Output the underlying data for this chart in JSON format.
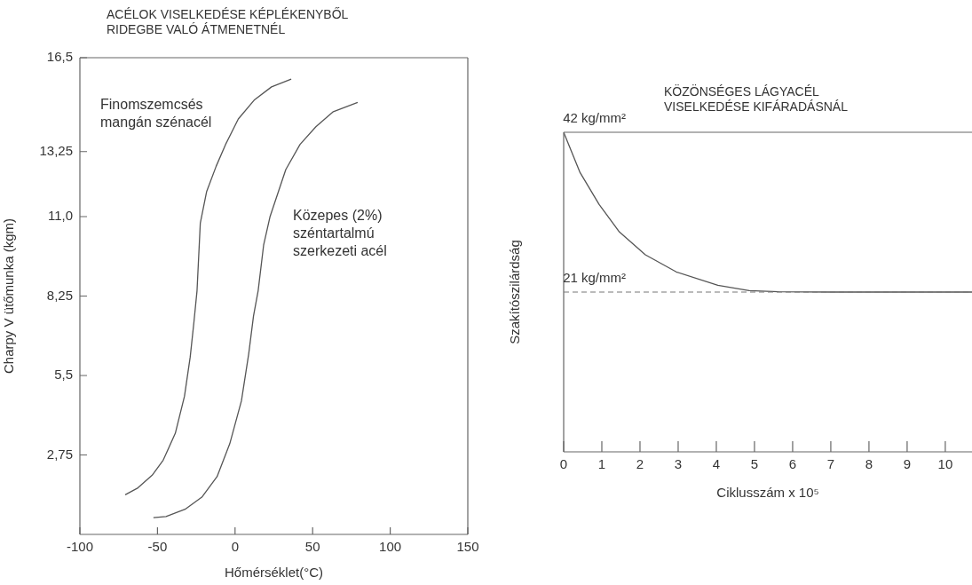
{
  "chart_data": [
    {
      "type": "line",
      "title": "ACÉLOK VISELKEDÉSE KÉPLÉKENYBŐL RIDEGBE VALÓ ÁTMENETNÉL",
      "xlabel": "Hőmérséklet(°C)",
      "ylabel": "Charpy V ütőmunka (kgm)",
      "xlim": [
        -100,
        150
      ],
      "xticks": [
        -100,
        -50,
        0,
        50,
        100,
        150
      ],
      "ylim": [
        0,
        16.5
      ],
      "yticks": [
        {
          "value": 2.75,
          "label": "2,75"
        },
        {
          "value": 5.5,
          "label": "5,5"
        },
        {
          "value": 8.25,
          "label": "8,25"
        },
        {
          "value": 11,
          "label": "11,0"
        },
        {
          "value": 13.25,
          "label": "13,25"
        },
        {
          "value": 16.5,
          "label": "16,5"
        }
      ],
      "grid": false,
      "legend": false,
      "marker": "none",
      "series": [
        {
          "name": "Finomszemcsés mangán szénacél",
          "color": "#555555",
          "x": [
            -70.8,
            -62.6,
            -53.4,
            -46.3,
            -38.5,
            -32.6,
            -28.9,
            -26.5,
            -24.5,
            -22.4,
            -18.3,
            -12.2,
            -6.1,
            2.1,
            12.3,
            23.5,
            36.2
          ],
          "values": [
            1.37,
            1.61,
            2.05,
            2.57,
            3.5,
            4.78,
            6.14,
            7.35,
            8.44,
            10.77,
            11.87,
            12.74,
            13.5,
            14.38,
            15.03,
            15.49,
            15.76
          ]
        },
        {
          "name": "Közepes (2%) széntartalmú szerkezeti acél",
          "color": "#555555",
          "x": [
            -52.6,
            -44.5,
            -32.2,
            -21.4,
            -11.6,
            -3.4,
            4.1,
            8.8,
            11.9,
            14.9,
            18.4,
            22.5,
            32.7,
            41.9,
            52.1,
            63.3,
            79
          ],
          "values": [
            0.58,
            0.62,
            0.87,
            1.29,
            2.0,
            3.14,
            4.62,
            6.25,
            7.56,
            8.44,
            10.01,
            10.99,
            12.63,
            13.5,
            14.11,
            14.63,
            14.95
          ]
        }
      ]
    },
    {
      "type": "line",
      "title": "KÖZÖNSÉGES LÁGYACÉL VISELKEDÉSE KIFÁRADÁSNÁL",
      "xlabel": "Ciklusszám x 10⁵",
      "ylabel": "Szakítószilárdság",
      "xlim": [
        0,
        10.7
      ],
      "xticks": [
        0,
        1,
        2,
        3,
        4,
        5,
        6,
        7,
        8,
        9,
        10
      ],
      "ylim": [
        0,
        42
      ],
      "yticks": [
        {
          "value": 21,
          "label": "21 kg/mm²"
        },
        {
          "value": 42,
          "label": "42 kg/mm²"
        }
      ],
      "grid": false,
      "legend": false,
      "marker": "none",
      "ref_lines": [
        {
          "axis": "y",
          "value": 21,
          "line_style": "dashed",
          "color": "#777777"
        }
      ],
      "series": [
        {
          "color": "#555555",
          "x": [
            0,
            0.43,
            0.93,
            1.46,
            2.14,
            2.95,
            4.04,
            4.86,
            5.63,
            7,
            10.7
          ],
          "values": [
            42,
            36.7,
            32.5,
            28.9,
            25.9,
            23.65,
            21.9,
            21.2,
            21.05,
            21,
            21
          ]
        }
      ]
    }
  ]
}
